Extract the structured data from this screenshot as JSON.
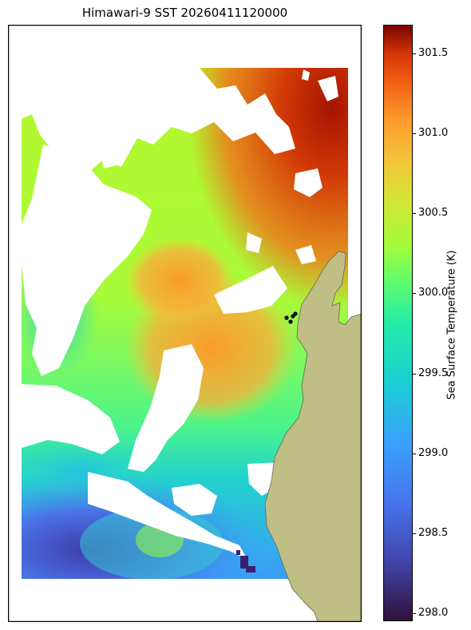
{
  "title": "Himawari-9 SST 20260411120000",
  "colorbar": {
    "label": "Sea Surface Temperature (K)",
    "ticks": [
      "301.5",
      "301.0",
      "300.5",
      "300.0",
      "299.5",
      "299.0",
      "298.5",
      "298.0"
    ],
    "range": [
      297.95,
      301.68
    ],
    "colormap": "turbo"
  },
  "map": {
    "land_color": "#bfbe84",
    "point_color": "#000000",
    "points": [
      {
        "x": 349,
        "y": 367
      },
      {
        "x": 357,
        "y": 365
      },
      {
        "x": 354,
        "y": 372
      },
      {
        "x": 360,
        "y": 362
      }
    ]
  }
}
